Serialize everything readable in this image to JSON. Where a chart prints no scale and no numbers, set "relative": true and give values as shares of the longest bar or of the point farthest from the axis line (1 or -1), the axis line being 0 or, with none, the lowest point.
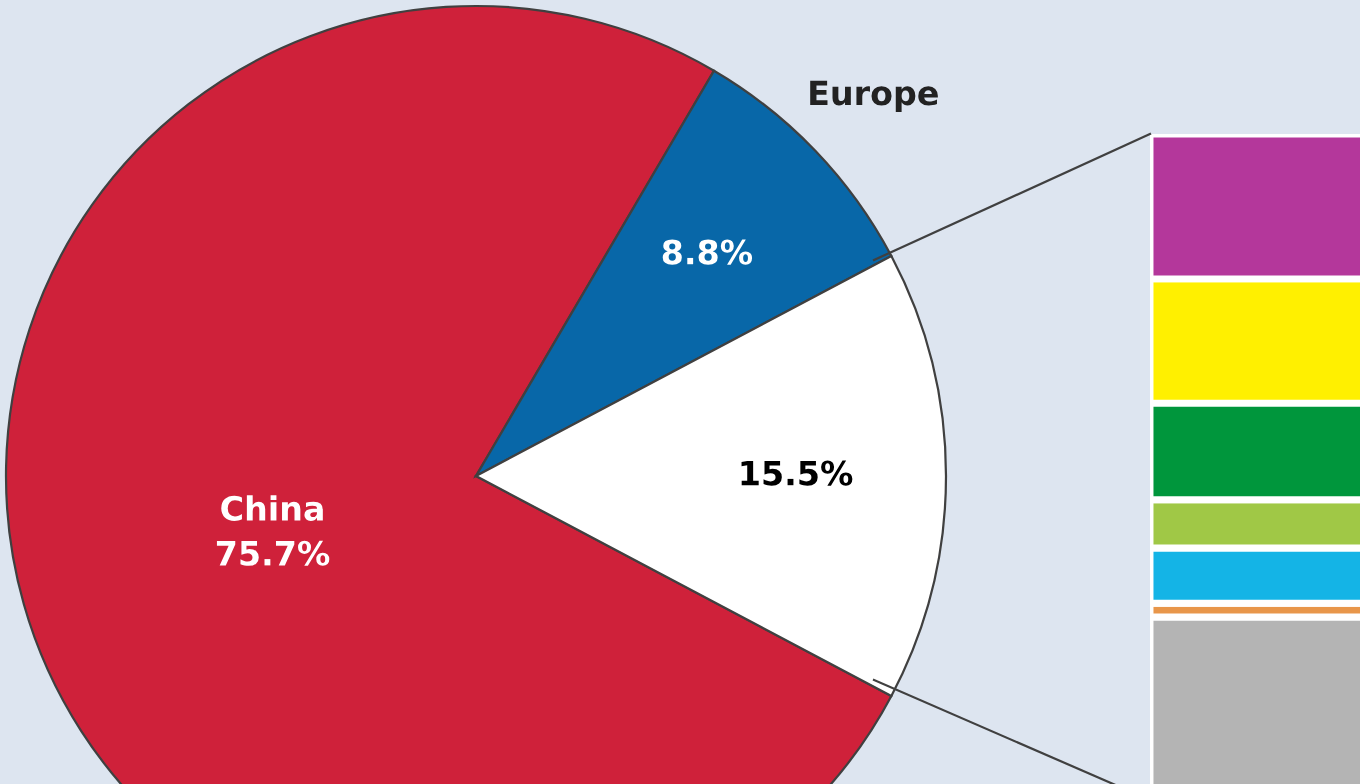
{
  "chart_data": [
    {
      "type": "pie",
      "categories": [
        "China",
        "Europe",
        null
      ],
      "values": [
        75.7,
        8.8,
        15.5
      ],
      "colors": [
        "#cf213a",
        "#0867a8",
        "#ffffff"
      ],
      "value_labels": [
        "75.7%",
        "8.8%",
        "15.5%"
      ]
    },
    {
      "type": "bar",
      "stacked": true,
      "relative": true,
      "categories": [
        null
      ],
      "series": [
        {
          "color": "#b4b4b4",
          "values": [
            0.3
          ]
        },
        {
          "color": "#e8964a",
          "values": [
            0.02
          ]
        },
        {
          "color": "#14b4e6",
          "values": [
            0.08
          ]
        },
        {
          "color": "#a0c846",
          "values": [
            0.07
          ]
        },
        {
          "color": "#00963c",
          "values": [
            0.14
          ]
        },
        {
          "color": "#fff000",
          "values": [
            0.18
          ]
        },
        {
          "color": "#b4379b",
          "values": [
            0.21
          ]
        }
      ]
    }
  ]
}
